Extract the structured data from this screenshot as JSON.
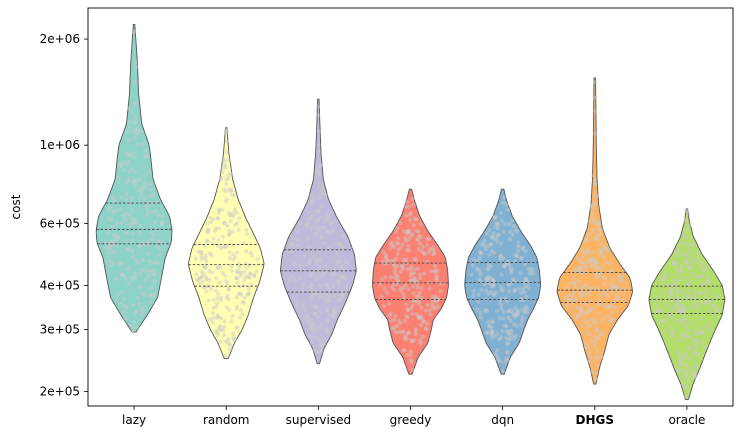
{
  "chart_data": {
    "type": "violin",
    "ylabel": "cost",
    "xlabel": "",
    "yscale": "log",
    "ylim": [
      182000,
      2450000
    ],
    "yticks": [
      {
        "value": 200000,
        "label": "2e+05"
      },
      {
        "value": 300000,
        "label": "3e+05"
      },
      {
        "value": 400000,
        "label": "4e+05"
      },
      {
        "value": 600000,
        "label": "6e+05"
      },
      {
        "value": 1000000,
        "label": "1e+06"
      },
      {
        "value": 2000000,
        "label": "2e+06"
      }
    ],
    "categories": [
      "lazy",
      "random",
      "supervised",
      "greedy",
      "dqn",
      "DHGS",
      "oracle"
    ],
    "bold_categories": [
      "DHGS"
    ],
    "series": [
      {
        "category": "lazy",
        "color": "#8dd3c7",
        "min": 295000,
        "max": 2200000,
        "q1": 525000,
        "median": 577000,
        "q3": 685000,
        "density": [
          [
            295000,
            0.05
          ],
          [
            330000,
            0.35
          ],
          [
            370000,
            0.62
          ],
          [
            420000,
            0.72
          ],
          [
            480000,
            0.82
          ],
          [
            530000,
            0.98
          ],
          [
            575000,
            1.0
          ],
          [
            630000,
            0.93
          ],
          [
            700000,
            0.7
          ],
          [
            800000,
            0.5
          ],
          [
            900000,
            0.45
          ],
          [
            1000000,
            0.4
          ],
          [
            1150000,
            0.2
          ],
          [
            1400000,
            0.12
          ],
          [
            1700000,
            0.09
          ],
          [
            2200000,
            0.02
          ]
        ]
      },
      {
        "category": "random",
        "color": "#ffffb3",
        "min": 248000,
        "max": 1120000,
        "q1": 398000,
        "median": 458000,
        "q3": 523000,
        "density": [
          [
            248000,
            0.05
          ],
          [
            275000,
            0.22
          ],
          [
            300000,
            0.42
          ],
          [
            330000,
            0.58
          ],
          [
            370000,
            0.72
          ],
          [
            410000,
            0.88
          ],
          [
            460000,
            1.0
          ],
          [
            510000,
            0.9
          ],
          [
            560000,
            0.72
          ],
          [
            620000,
            0.52
          ],
          [
            700000,
            0.32
          ],
          [
            800000,
            0.17
          ],
          [
            950000,
            0.07
          ],
          [
            1120000,
            0.02
          ]
        ]
      },
      {
        "category": "supervised",
        "color": "#bebada",
        "min": 240000,
        "max": 1350000,
        "q1": 383000,
        "median": 440000,
        "q3": 505000,
        "density": [
          [
            240000,
            0.03
          ],
          [
            265000,
            0.15
          ],
          [
            290000,
            0.35
          ],
          [
            320000,
            0.5
          ],
          [
            355000,
            0.7
          ],
          [
            400000,
            0.9
          ],
          [
            440000,
            1.0
          ],
          [
            490000,
            0.95
          ],
          [
            550000,
            0.78
          ],
          [
            620000,
            0.5
          ],
          [
            700000,
            0.27
          ],
          [
            800000,
            0.13
          ],
          [
            950000,
            0.07
          ],
          [
            1150000,
            0.04
          ],
          [
            1350000,
            0.02
          ]
        ]
      },
      {
        "category": "greedy",
        "color": "#fb8072",
        "min": 224000,
        "max": 750000,
        "q1": 365000,
        "median": 407000,
        "q3": 463000,
        "density": [
          [
            224000,
            0.04
          ],
          [
            250000,
            0.2
          ],
          [
            275000,
            0.46
          ],
          [
            300000,
            0.55
          ],
          [
            320000,
            0.6
          ],
          [
            345000,
            0.82
          ],
          [
            370000,
            0.95
          ],
          [
            400000,
            1.0
          ],
          [
            440000,
            0.98
          ],
          [
            480000,
            0.92
          ],
          [
            520000,
            0.72
          ],
          [
            570000,
            0.46
          ],
          [
            630000,
            0.24
          ],
          [
            700000,
            0.1
          ],
          [
            750000,
            0.03
          ]
        ]
      },
      {
        "category": "dqn",
        "color": "#80b1d3",
        "min": 224000,
        "max": 750000,
        "q1": 365000,
        "median": 408000,
        "q3": 465000,
        "density": [
          [
            224000,
            0.04
          ],
          [
            250000,
            0.2
          ],
          [
            275000,
            0.44
          ],
          [
            300000,
            0.56
          ],
          [
            320000,
            0.66
          ],
          [
            345000,
            0.82
          ],
          [
            370000,
            0.95
          ],
          [
            400000,
            1.0
          ],
          [
            440000,
            0.97
          ],
          [
            480000,
            0.9
          ],
          [
            520000,
            0.73
          ],
          [
            570000,
            0.48
          ],
          [
            630000,
            0.25
          ],
          [
            700000,
            0.1
          ],
          [
            750000,
            0.03
          ]
        ]
      },
      {
        "category": "DHGS",
        "color": "#fdb462",
        "min": 210000,
        "max": 1550000,
        "q1": 358000,
        "median": 388000,
        "q3": 435000,
        "density": [
          [
            210000,
            0.03
          ],
          [
            235000,
            0.13
          ],
          [
            260000,
            0.26
          ],
          [
            290000,
            0.37
          ],
          [
            320000,
            0.6
          ],
          [
            350000,
            0.88
          ],
          [
            385000,
            1.0
          ],
          [
            420000,
            0.93
          ],
          [
            460000,
            0.66
          ],
          [
            510000,
            0.4
          ],
          [
            580000,
            0.2
          ],
          [
            680000,
            0.1
          ],
          [
            800000,
            0.06
          ],
          [
            1000000,
            0.04
          ],
          [
            1250000,
            0.03
          ],
          [
            1550000,
            0.02
          ]
        ]
      },
      {
        "category": "oracle",
        "color": "#b3de69",
        "min": 190000,
        "max": 660000,
        "q1": 333000,
        "median": 365000,
        "q3": 398000,
        "density": [
          [
            190000,
            0.04
          ],
          [
            210000,
            0.16
          ],
          [
            230000,
            0.32
          ],
          [
            255000,
            0.48
          ],
          [
            275000,
            0.6
          ],
          [
            300000,
            0.75
          ],
          [
            330000,
            0.93
          ],
          [
            365000,
            1.0
          ],
          [
            400000,
            0.93
          ],
          [
            440000,
            0.7
          ],
          [
            490000,
            0.4
          ],
          [
            550000,
            0.17
          ],
          [
            610000,
            0.06
          ],
          [
            660000,
            0.02
          ]
        ]
      }
    ]
  }
}
